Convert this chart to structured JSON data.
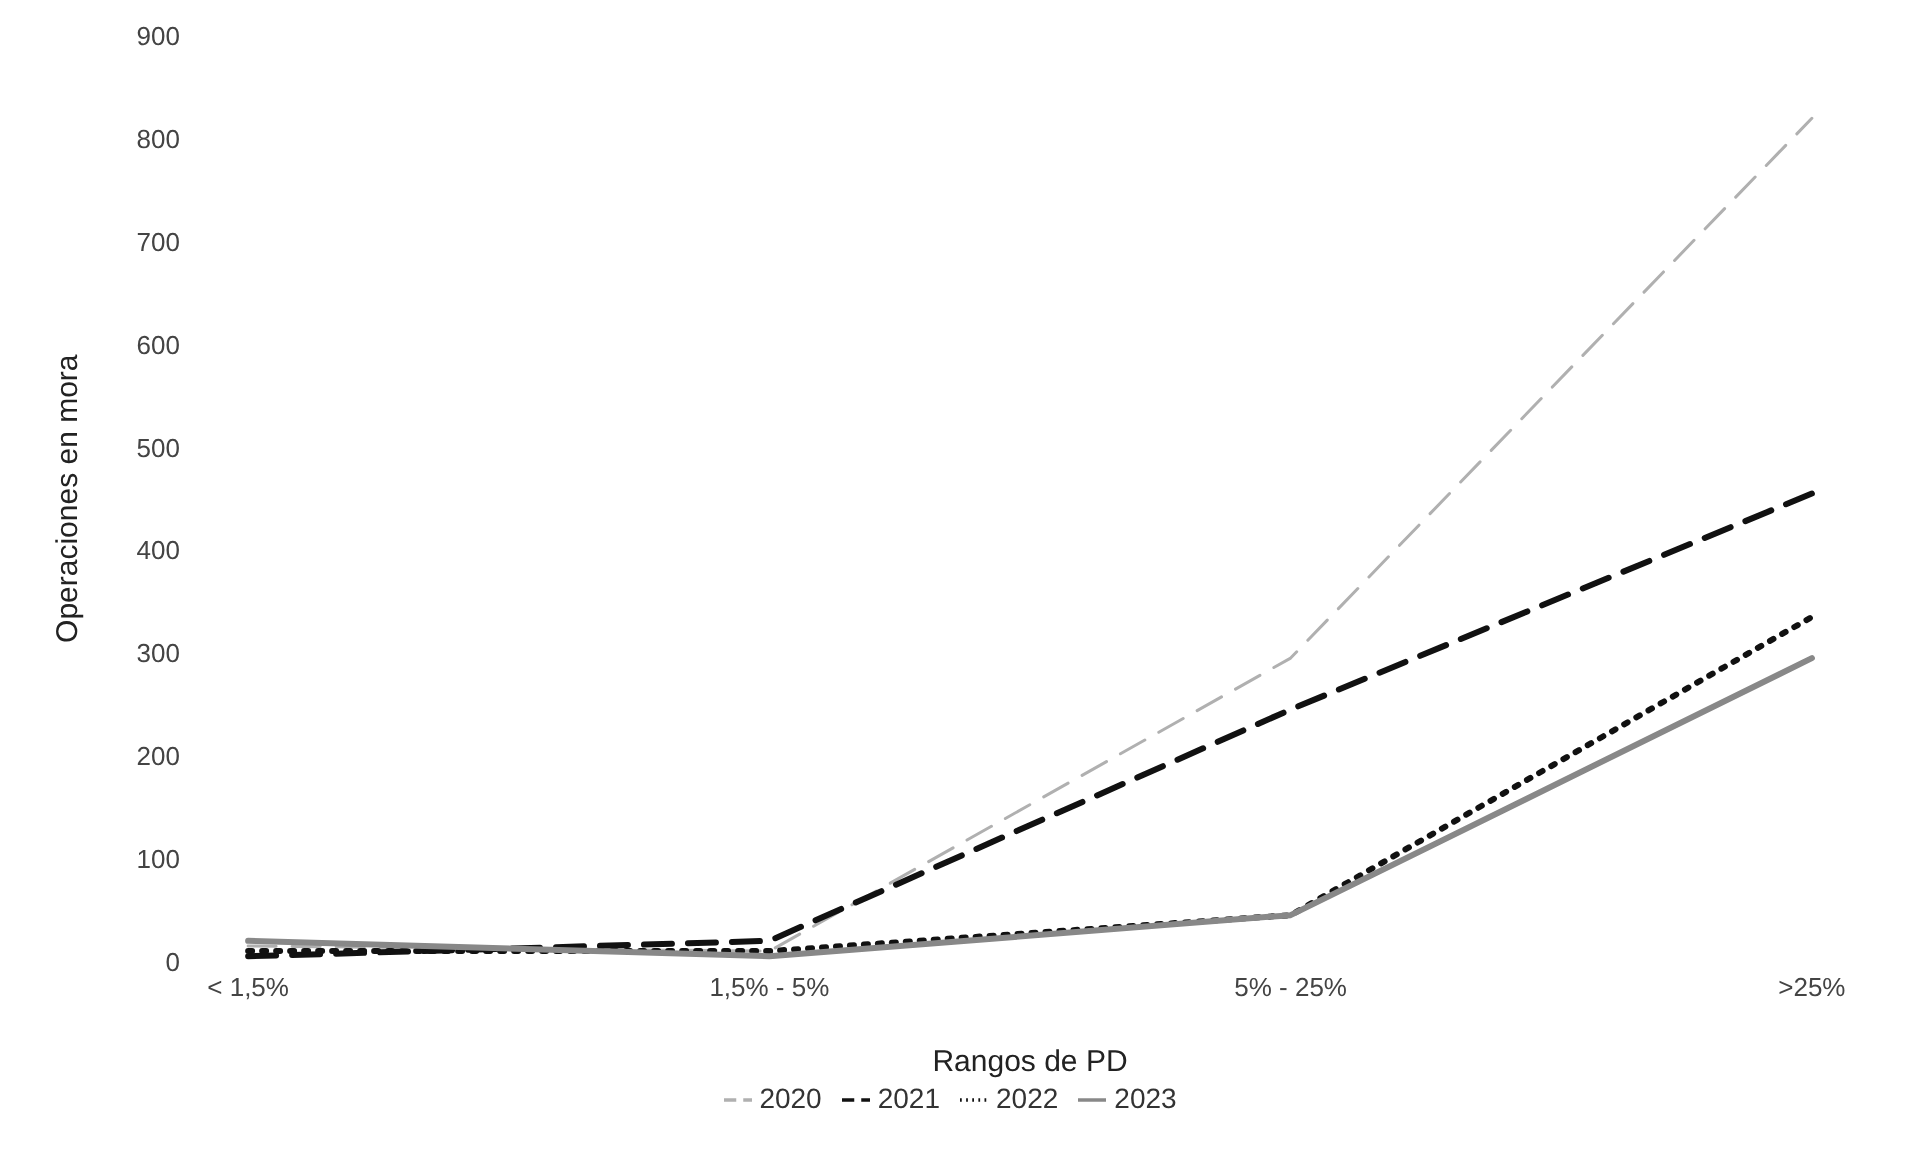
{
  "chart_data": {
    "type": "line",
    "xlabel": "Rangos de PD",
    "ylabel": "Operaciones en mora",
    "categories": [
      "< 1,5%",
      "1,5% - 5%",
      "5% - 25%",
      ">25%"
    ],
    "series": [
      {
        "name": "2020",
        "color": "#b0b0b0",
        "values": [
          15,
          10,
          295,
          820
        ],
        "line_style": "dashed"
      },
      {
        "name": "2021",
        "color": "#111111",
        "values": [
          5,
          20,
          245,
          455
        ],
        "line_style": "dashed"
      },
      {
        "name": "2022",
        "color": "#111111",
        "values": [
          10,
          10,
          45,
          335
        ],
        "line_style": "dotted"
      },
      {
        "name": "2023",
        "color": "#888888",
        "values": [
          20,
          5,
          45,
          295
        ],
        "line_style": "solid"
      }
    ],
    "ylim": [
      0,
      900
    ],
    "yticks": [
      0,
      100,
      200,
      300,
      400,
      500,
      600,
      700,
      800,
      900
    ],
    "grid": false,
    "legend": "bottom",
    "marker": "none"
  }
}
